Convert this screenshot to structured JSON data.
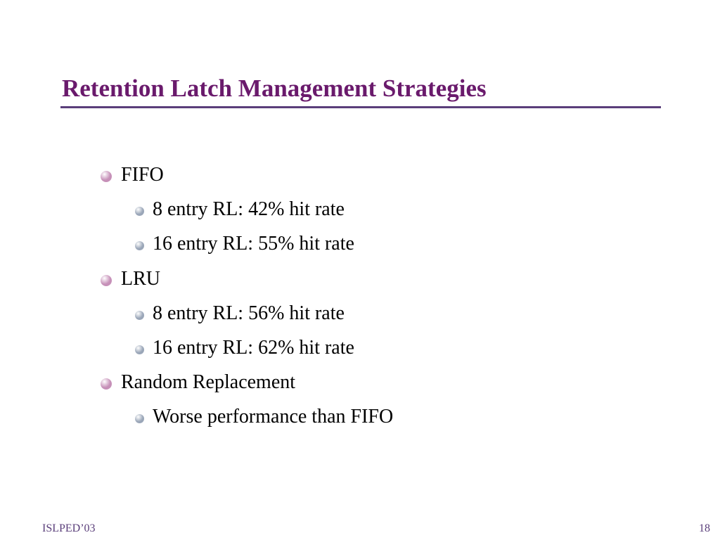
{
  "title": "Retention Latch Management Strategies",
  "colors": {
    "title": "#6a1a6c",
    "rule": "#5a3e7a",
    "bullet_l1": "#c690b8",
    "bullet_l2": "#9aa6b8",
    "footer": "#5a3e7a"
  },
  "bullets": [
    {
      "text": "FIFO",
      "icon": "pink-sphere-bullet-icon",
      "children": [
        {
          "text": "8 entry RL: 42% hit rate",
          "icon": "gray-sphere-bullet-icon"
        },
        {
          "text": "16 entry RL: 55% hit rate",
          "icon": "gray-sphere-bullet-icon"
        }
      ]
    },
    {
      "text": "LRU",
      "icon": "pink-sphere-bullet-icon",
      "children": [
        {
          "text": "8 entry RL: 56% hit rate",
          "icon": "gray-sphere-bullet-icon"
        },
        {
          "text": "16 entry RL: 62% hit rate",
          "icon": "gray-sphere-bullet-icon"
        }
      ]
    },
    {
      "text": "Random Replacement",
      "icon": "pink-sphere-bullet-icon",
      "children": [
        {
          "text": "Worse performance than FIFO",
          "icon": "gray-sphere-bullet-icon"
        }
      ]
    }
  ],
  "footer": {
    "left": "ISLPED’03",
    "right": "18"
  }
}
